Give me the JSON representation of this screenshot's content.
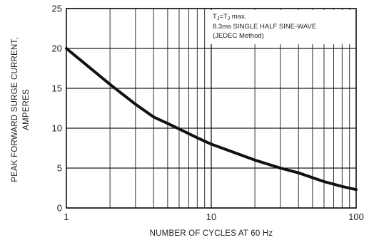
{
  "chart_data": {
    "type": "line",
    "xlabel": "NUMBER OF CYCLES AT 60 Hz",
    "ylabel_lines": [
      "PEAK FORWARD SURGE CURRENT,",
      "AMPERES"
    ],
    "x_scale": "log",
    "xlim": [
      1,
      100
    ],
    "ylim": [
      0,
      25
    ],
    "x_ticks": [
      1,
      10,
      100
    ],
    "x_tick_labels": [
      "1",
      "10",
      "100"
    ],
    "y_ticks": [
      0,
      5,
      10,
      15,
      20,
      25
    ],
    "y_tick_labels": [
      "0",
      "5",
      "10",
      "15",
      "20",
      "25"
    ],
    "grid": true,
    "annotation_lines": [
      "TJ=TJ max.",
      "8.3ms SINGLE HALF SINE-WAVE",
      "(JEDEC Method)"
    ],
    "annotation_sub": {
      "main": "T",
      "sub": "J",
      "middle": "=T",
      "tail": " max."
    },
    "series": [
      {
        "x": [
          1,
          2,
          3,
          4,
          5,
          6,
          8,
          10,
          20,
          30,
          40,
          60,
          80,
          100
        ],
        "y": [
          20,
          15.5,
          13,
          11.4,
          10.6,
          9.9,
          8.8,
          8.0,
          6.0,
          5.0,
          4.4,
          3.3,
          2.7,
          2.3
        ]
      }
    ]
  }
}
